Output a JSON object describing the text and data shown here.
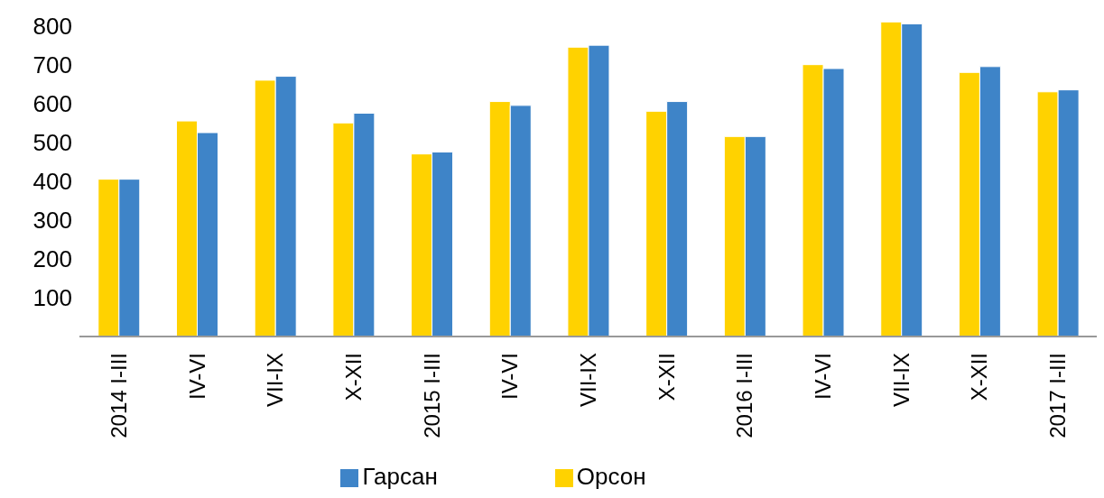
{
  "chart_data": {
    "type": "bar",
    "categories": [
      "2014 I-III",
      "IV-VI",
      "VII-IX",
      "X-XII",
      "2015 I-III",
      "IV-VI",
      "VII-IX",
      "X-XII",
      "2016 I-III",
      "IV-VI",
      "VII-IX",
      "X-XII",
      "2017 I-III"
    ],
    "series": [
      {
        "name": "Орсон",
        "color": "#ffd200",
        "values": [
          405,
          555,
          660,
          550,
          470,
          605,
          745,
          580,
          515,
          700,
          810,
          680,
          630
        ]
      },
      {
        "name": "Гарсан",
        "color": "#3e84c8",
        "values": [
          405,
          525,
          670,
          575,
          475,
          595,
          750,
          605,
          515,
          690,
          805,
          695,
          635
        ]
      }
    ],
    "ylim": [
      0,
      820
    ],
    "yticks": [
      100,
      200,
      300,
      400,
      500,
      600,
      700,
      800
    ],
    "grid": false,
    "legend": "bottom"
  }
}
